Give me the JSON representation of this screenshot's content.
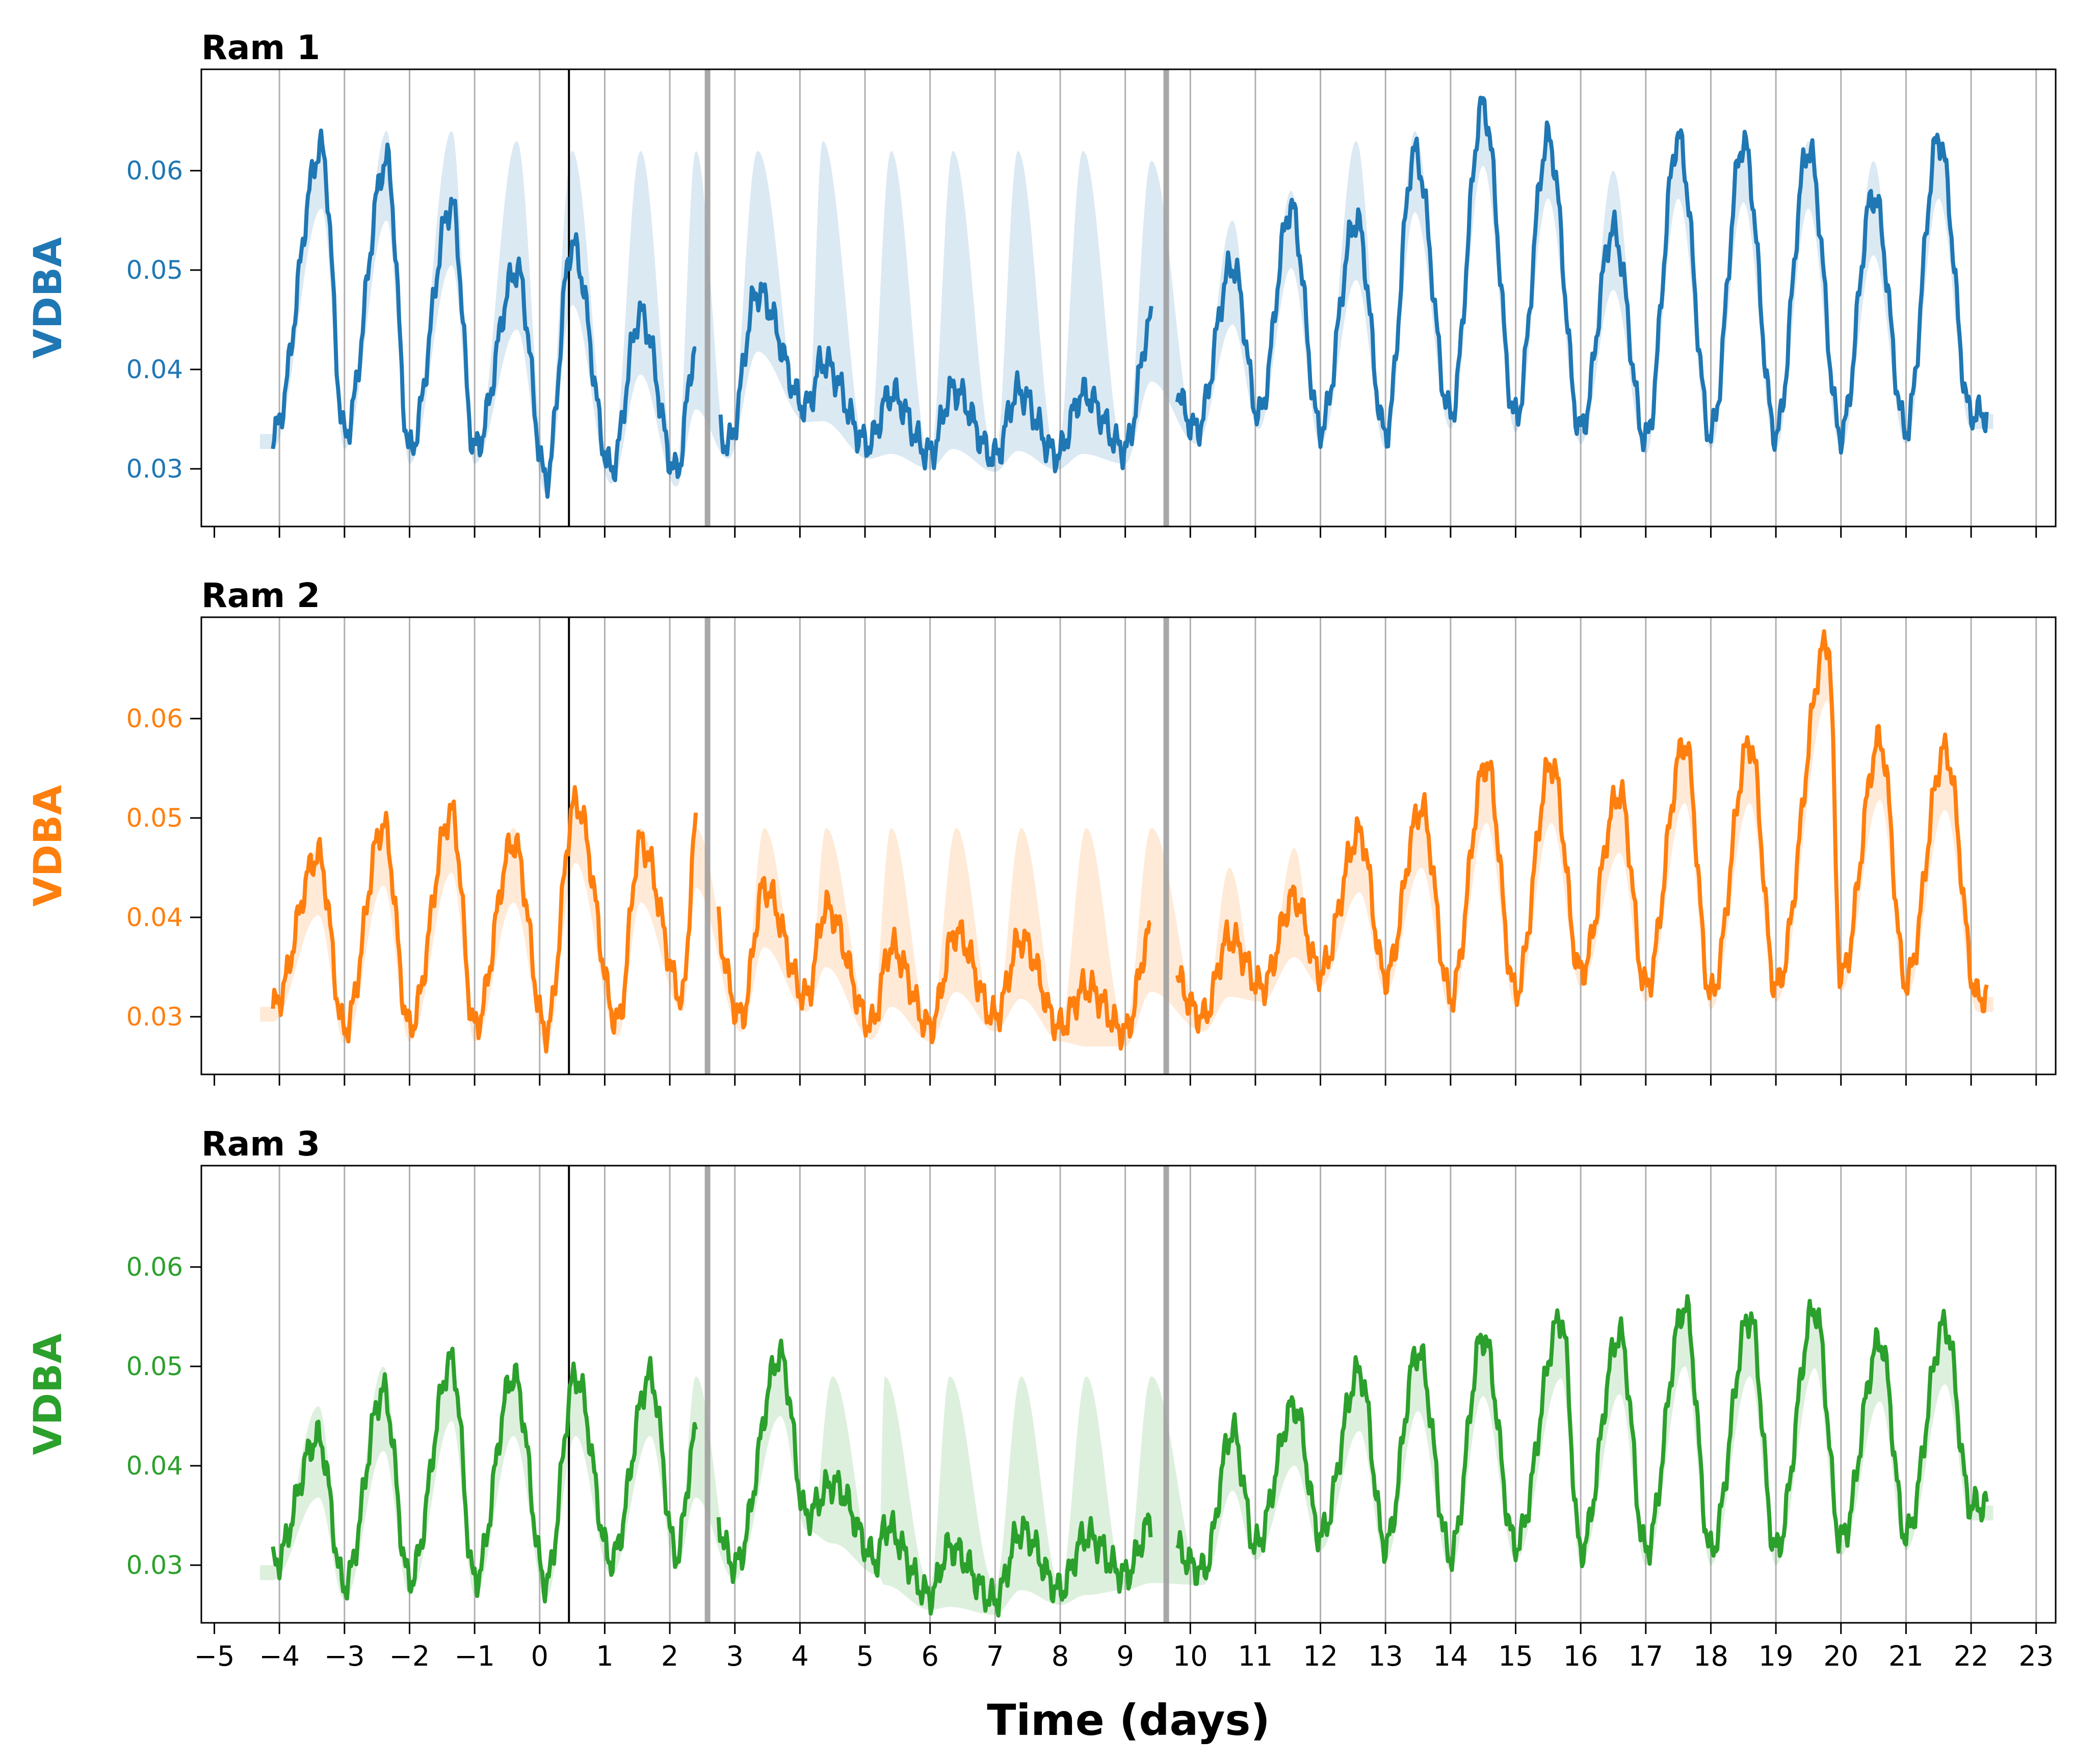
{
  "chart_data": {
    "type": "line",
    "xlabel": "Time (days)",
    "xlim": [
      -5.2,
      23.3
    ],
    "x_ticks": [
      -5,
      -4,
      -3,
      -2,
      -1,
      0,
      1,
      2,
      3,
      4,
      5,
      6,
      7,
      8,
      9,
      10,
      11,
      12,
      13,
      14,
      15,
      16,
      17,
      18,
      19,
      20,
      21,
      22,
      23
    ],
    "x_tick_labels": [
      "−5",
      "−4",
      "−3",
      "−2",
      "−1",
      "0",
      "1",
      "2",
      "3",
      "4",
      "5",
      "6",
      "7",
      "8",
      "9",
      "10",
      "11",
      "12",
      "13",
      "14",
      "15",
      "16",
      "17",
      "18",
      "19",
      "20",
      "21",
      "22",
      "23"
    ],
    "vertical_gridlines": [
      -4,
      -3,
      -2,
      -1,
      0,
      1,
      2,
      3,
      4,
      5,
      6,
      7,
      8,
      9,
      10,
      11,
      12,
      13,
      14,
      15,
      16,
      17,
      18,
      19,
      20,
      21,
      22,
      23
    ],
    "event_lines": [
      {
        "x": 0.45,
        "color": "#000000",
        "style": "thin-black"
      },
      {
        "x": 2.58,
        "color": "#999999",
        "style": "thick-grey"
      },
      {
        "x": 9.63,
        "color": "#999999",
        "style": "thick-grey"
      }
    ],
    "panels": [
      {
        "title": "Ram 1",
        "ylabel": "VDBA",
        "color": "#1f77b4",
        "ylim": [
          0.0242,
          0.0702
        ],
        "y_ticks": [
          0.03,
          0.04,
          0.05,
          0.06
        ],
        "y_tick_labels": [
          "0.03",
          "0.04",
          "0.05",
          "0.06"
        ],
        "series": {
          "peaks": [
            {
              "x": -3.35,
              "v": 0.0622
            },
            {
              "x": -2.35,
              "v": 0.061
            },
            {
              "x": -1.35,
              "v": 0.0565
            },
            {
              "x": -0.35,
              "v": 0.05
            },
            {
              "x": 0.5,
              "v": 0.0525
            },
            {
              "x": 1.55,
              "v": 0.0455
            },
            {
              "x": 2.4,
              "v": 0.042
            },
            {
              "x": 3.35,
              "v": 0.0478
            },
            {
              "x": 4.35,
              "v": 0.0408
            },
            {
              "x": 5.4,
              "v": 0.0375
            },
            {
              "x": 6.35,
              "v": 0.038
            },
            {
              "x": 7.35,
              "v": 0.0378
            },
            {
              "x": 8.35,
              "v": 0.0375
            },
            {
              "x": 9.4,
              "v": 0.0448
            },
            {
              "x": 10.65,
              "v": 0.0505
            },
            {
              "x": 11.55,
              "v": 0.0562
            },
            {
              "x": 12.55,
              "v": 0.055
            },
            {
              "x": 13.45,
              "v": 0.0618
            },
            {
              "x": 14.5,
              "v": 0.0665
            },
            {
              "x": 15.5,
              "v": 0.0632
            },
            {
              "x": 16.5,
              "v": 0.054
            },
            {
              "x": 17.5,
              "v": 0.0632
            },
            {
              "x": 18.5,
              "v": 0.0628
            },
            {
              "x": 19.5,
              "v": 0.0622
            },
            {
              "x": 20.5,
              "v": 0.0575
            },
            {
              "x": 21.5,
              "v": 0.0632
            }
          ],
          "troughs": [
            {
              "x": -4.1,
              "v": 0.0335
            },
            {
              "x": -3.0,
              "v": 0.0335
            },
            {
              "x": -2.0,
              "v": 0.032
            },
            {
              "x": -1.0,
              "v": 0.032
            },
            {
              "x": 0.1,
              "v": 0.029
            },
            {
              "x": 1.1,
              "v": 0.03
            },
            {
              "x": 2.1,
              "v": 0.0297
            },
            {
              "x": 2.9,
              "v": 0.0325
            },
            {
              "x": 4.1,
              "v": 0.0362
            },
            {
              "x": 5.05,
              "v": 0.0325
            },
            {
              "x": 6.0,
              "v": 0.0315
            },
            {
              "x": 7.0,
              "v": 0.0312
            },
            {
              "x": 7.95,
              "v": 0.0314
            },
            {
              "x": 9.0,
              "v": 0.032
            },
            {
              "x": 10.1,
              "v": 0.034
            },
            {
              "x": 11.05,
              "v": 0.0355
            },
            {
              "x": 12.0,
              "v": 0.034
            },
            {
              "x": 13.0,
              "v": 0.0335
            },
            {
              "x": 14.0,
              "v": 0.0355
            },
            {
              "x": 15.0,
              "v": 0.0352
            },
            {
              "x": 16.0,
              "v": 0.034
            },
            {
              "x": 17.0,
              "v": 0.033
            },
            {
              "x": 18.0,
              "v": 0.0335
            },
            {
              "x": 19.0,
              "v": 0.0335
            },
            {
              "x": 20.0,
              "v": 0.0335
            },
            {
              "x": 21.0,
              "v": 0.034
            },
            {
              "x": 22.0,
              "v": 0.0355
            }
          ],
          "segments": [
            [
              -4.1,
              2.4
            ],
            [
              2.78,
              9.4
            ],
            [
              9.8,
              22.25
            ]
          ],
          "band_peaks": [
            0.06,
            0.064,
            0.064,
            0.063,
            0.062,
            0.062,
            0.062,
            0.062,
            0.063,
            0.062,
            0.062,
            0.062,
            0.062,
            0.061,
            0.055,
            0.058,
            0.063,
            0.064,
            0.066,
            0.063,
            0.06,
            0.063,
            0.063,
            0.063,
            0.061,
            0.062
          ],
          "band_troughs": [
            0.032,
            0.032,
            0.031,
            0.031,
            0.03,
            0.03,
            0.03,
            0.031,
            0.031,
            0.031,
            0.031,
            0.031,
            0.031,
            0.031,
            0.033,
            0.033,
            0.032,
            0.032,
            0.033,
            0.033,
            0.032,
            0.032,
            0.032,
            0.032,
            0.032,
            0.032,
            0.032
          ]
        }
      },
      {
        "title": "Ram 2",
        "ylabel": "VDBA",
        "color": "#ff7f0e",
        "ylim": [
          0.0242,
          0.0702
        ],
        "y_ticks": [
          0.03,
          0.04,
          0.05,
          0.06
        ],
        "y_tick_labels": [
          "0.03",
          "0.04",
          "0.05",
          "0.06"
        ],
        "series": {
          "peaks": [
            {
              "x": -3.4,
              "v": 0.0462
            },
            {
              "x": -2.4,
              "v": 0.0492
            },
            {
              "x": -1.35,
              "v": 0.0505
            },
            {
              "x": -0.4,
              "v": 0.0475
            },
            {
              "x": 0.55,
              "v": 0.0515
            },
            {
              "x": 1.55,
              "v": 0.0475
            },
            {
              "x": 2.4,
              "v": 0.049
            },
            {
              "x": 3.45,
              "v": 0.043
            },
            {
              "x": 4.4,
              "v": 0.041
            },
            {
              "x": 5.4,
              "v": 0.037
            },
            {
              "x": 6.4,
              "v": 0.0385
            },
            {
              "x": 7.4,
              "v": 0.0378
            },
            {
              "x": 8.4,
              "v": 0.033
            },
            {
              "x": 9.4,
              "v": 0.0385
            },
            {
              "x": 10.6,
              "v": 0.038
            },
            {
              "x": 11.6,
              "v": 0.042
            },
            {
              "x": 12.6,
              "v": 0.0485
            },
            {
              "x": 13.55,
              "v": 0.051
            },
            {
              "x": 14.55,
              "v": 0.0555
            },
            {
              "x": 15.55,
              "v": 0.0555
            },
            {
              "x": 16.6,
              "v": 0.0525
            },
            {
              "x": 17.6,
              "v": 0.0575
            },
            {
              "x": 18.6,
              "v": 0.0575
            },
            {
              "x": 19.8,
              "v": 0.0678
            },
            {
              "x": 20.6,
              "v": 0.0578
            },
            {
              "x": 21.6,
              "v": 0.0568
            }
          ],
          "troughs": [
            {
              "x": -4.1,
              "v": 0.031
            },
            {
              "x": -3.0,
              "v": 0.0288
            },
            {
              "x": -2.0,
              "v": 0.029
            },
            {
              "x": -1.0,
              "v": 0.029
            },
            {
              "x": 0.1,
              "v": 0.0285
            },
            {
              "x": 1.2,
              "v": 0.0295
            },
            {
              "x": 2.2,
              "v": 0.032
            },
            {
              "x": 3.1,
              "v": 0.03
            },
            {
              "x": 4.1,
              "v": 0.032
            },
            {
              "x": 5.1,
              "v": 0.0292
            },
            {
              "x": 6.0,
              "v": 0.029
            },
            {
              "x": 7.0,
              "v": 0.03
            },
            {
              "x": 8.0,
              "v": 0.029
            },
            {
              "x": 9.0,
              "v": 0.0285
            },
            {
              "x": 10.2,
              "v": 0.03
            },
            {
              "x": 11.1,
              "v": 0.033
            },
            {
              "x": 12.0,
              "v": 0.0345
            },
            {
              "x": 13.0,
              "v": 0.034
            },
            {
              "x": 14.0,
              "v": 0.032
            },
            {
              "x": 15.0,
              "v": 0.0325
            },
            {
              "x": 16.0,
              "v": 0.0345
            },
            {
              "x": 17.0,
              "v": 0.033
            },
            {
              "x": 18.0,
              "v": 0.0322
            },
            {
              "x": 19.0,
              "v": 0.033
            },
            {
              "x": 20.0,
              "v": 0.034
            },
            {
              "x": 21.0,
              "v": 0.0335
            },
            {
              "x": 22.1,
              "v": 0.032
            }
          ],
          "segments": [
            [
              -4.1,
              2.4
            ],
            [
              2.75,
              9.4
            ],
            [
              9.8,
              22.25
            ]
          ],
          "band_peaks": [
            0.047,
            0.049,
            0.049,
            0.049,
            0.049,
            0.049,
            0.049,
            0.049,
            0.049,
            0.049,
            0.049,
            0.049,
            0.049,
            0.049,
            0.045,
            0.047,
            0.049,
            0.05,
            0.051,
            0.049,
            0.047,
            0.047,
            0.047,
            0.047,
            0.047,
            0.047
          ],
          "band_troughs": [
            0.03,
            0.029,
            0.029,
            0.029,
            0.029,
            0.029,
            0.029,
            0.029,
            0.029,
            0.029,
            0.029,
            0.029,
            0.029,
            0.029,
            0.029,
            0.029,
            0.029,
            0.029,
            0.029,
            0.029,
            0.029,
            0.029,
            0.029,
            0.029,
            0.029,
            0.029,
            0.029
          ]
        }
      },
      {
        "title": "Ram 3",
        "ylabel": "VDBA",
        "color": "#2ca02c",
        "ylim": [
          0.0242,
          0.0702
        ],
        "y_ticks": [
          0.03,
          0.04,
          0.05,
          0.06
        ],
        "y_tick_labels": [
          "0.03",
          "0.04",
          "0.05",
          "0.06"
        ],
        "series": {
          "peaks": [
            {
              "x": -3.4,
              "v": 0.0428
            },
            {
              "x": -2.4,
              "v": 0.0475
            },
            {
              "x": -1.35,
              "v": 0.0505
            },
            {
              "x": -0.4,
              "v": 0.049
            },
            {
              "x": 0.55,
              "v": 0.049
            },
            {
              "x": 1.7,
              "v": 0.049
            },
            {
              "x": 2.4,
              "v": 0.0428
            },
            {
              "x": 3.7,
              "v": 0.051
            },
            {
              "x": 4.5,
              "v": 0.0382
            },
            {
              "x": 5.3,
              "v": 0.034
            },
            {
              "x": 6.3,
              "v": 0.0318
            },
            {
              "x": 7.4,
              "v": 0.0335
            },
            {
              "x": 8.4,
              "v": 0.033
            },
            {
              "x": 9.4,
              "v": 0.0342
            },
            {
              "x": 10.65,
              "v": 0.0435
            },
            {
              "x": 11.6,
              "v": 0.046
            },
            {
              "x": 12.6,
              "v": 0.0495
            },
            {
              "x": 13.5,
              "v": 0.0515
            },
            {
              "x": 14.5,
              "v": 0.053
            },
            {
              "x": 15.7,
              "v": 0.0548
            },
            {
              "x": 16.6,
              "v": 0.0532
            },
            {
              "x": 17.6,
              "v": 0.056
            },
            {
              "x": 18.6,
              "v": 0.055
            },
            {
              "x": 19.6,
              "v": 0.0558
            },
            {
              "x": 20.6,
              "v": 0.0525
            },
            {
              "x": 21.6,
              "v": 0.0542
            }
          ],
          "troughs": [
            {
              "x": -4.1,
              "v": 0.03
            },
            {
              "x": -3.0,
              "v": 0.028
            },
            {
              "x": -2.0,
              "v": 0.0285
            },
            {
              "x": -1.0,
              "v": 0.0285
            },
            {
              "x": 0.1,
              "v": 0.0282
            },
            {
              "x": 1.1,
              "v": 0.0305
            },
            {
              "x": 2.1,
              "v": 0.031
            },
            {
              "x": 3.0,
              "v": 0.03
            },
            {
              "x": 4.1,
              "v": 0.035
            },
            {
              "x": 5.2,
              "v": 0.0305
            },
            {
              "x": 6.0,
              "v": 0.027
            },
            {
              "x": 7.0,
              "v": 0.0265
            },
            {
              "x": 8.0,
              "v": 0.0275
            },
            {
              "x": 9.0,
              "v": 0.029
            },
            {
              "x": 10.2,
              "v": 0.0295
            },
            {
              "x": 11.0,
              "v": 0.032
            },
            {
              "x": 12.0,
              "v": 0.033
            },
            {
              "x": 13.0,
              "v": 0.032
            },
            {
              "x": 14.0,
              "v": 0.031
            },
            {
              "x": 15.0,
              "v": 0.032
            },
            {
              "x": 16.0,
              "v": 0.0315
            },
            {
              "x": 17.0,
              "v": 0.0315
            },
            {
              "x": 18.0,
              "v": 0.0315
            },
            {
              "x": 19.0,
              "v": 0.0315
            },
            {
              "x": 20.0,
              "v": 0.0325
            },
            {
              "x": 21.0,
              "v": 0.033
            },
            {
              "x": 22.0,
              "v": 0.036
            }
          ],
          "segments": [
            [
              -4.1,
              2.4
            ],
            [
              2.75,
              9.4
            ],
            [
              9.8,
              22.25
            ]
          ],
          "band_peaks": [
            0.046,
            0.05,
            0.05,
            0.049,
            0.049,
            0.049,
            0.049,
            0.049,
            0.049,
            0.049,
            0.049,
            0.049,
            0.049,
            0.049,
            0.044,
            0.046,
            0.049,
            0.05,
            0.052,
            0.049,
            0.047,
            0.047,
            0.047,
            0.047,
            0.047,
            0.047
          ],
          "band_troughs": [
            0.029,
            0.028,
            0.028,
            0.028,
            0.028,
            0.028,
            0.028,
            0.028,
            0.028,
            0.028,
            0.028,
            0.028,
            0.028,
            0.028,
            0.028,
            0.028,
            0.028,
            0.028,
            0.028,
            0.028,
            0.028,
            0.028,
            0.028,
            0.028,
            0.028,
            0.028,
            0.028
          ]
        }
      }
    ]
  }
}
